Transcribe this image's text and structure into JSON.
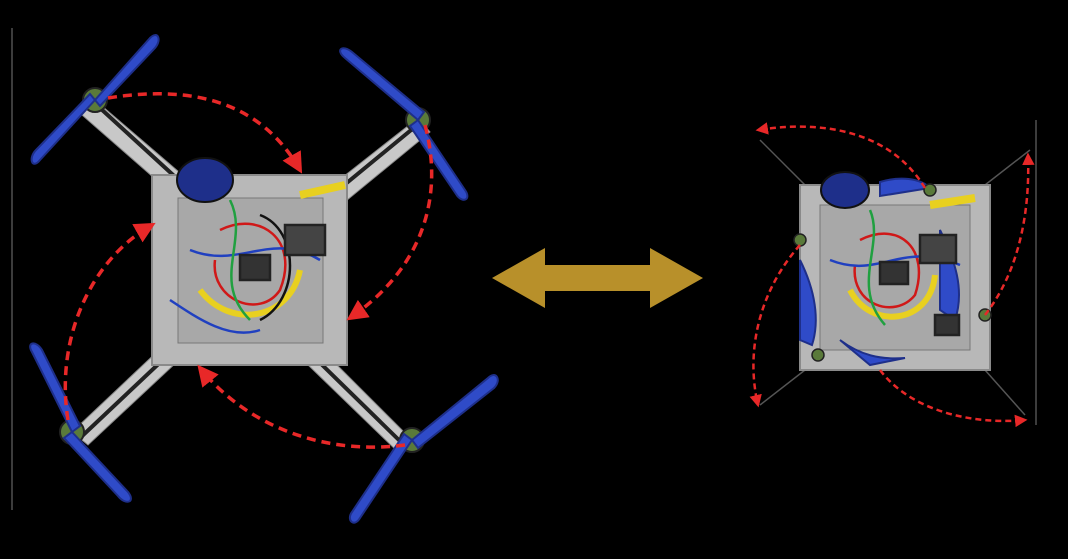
{
  "colors": {
    "background": "#000000",
    "arm": "#c8c8c8",
    "frame": "#b8b8b8",
    "propeller": "#2f4bc8",
    "propeller_dark": "#1e2f8a",
    "motor": "#5a7a3a",
    "fold_arrow": "#e82828",
    "transition_arrow": "#b8902a",
    "wire_red": "#d01818",
    "wire_yellow": "#e8d020",
    "wire_blue": "#2040c0",
    "wire_green": "#20a040"
  },
  "icons": {
    "transition": "double-headed-arrow-icon",
    "fold_motion": "curved-dashed-arrow-icon"
  }
}
